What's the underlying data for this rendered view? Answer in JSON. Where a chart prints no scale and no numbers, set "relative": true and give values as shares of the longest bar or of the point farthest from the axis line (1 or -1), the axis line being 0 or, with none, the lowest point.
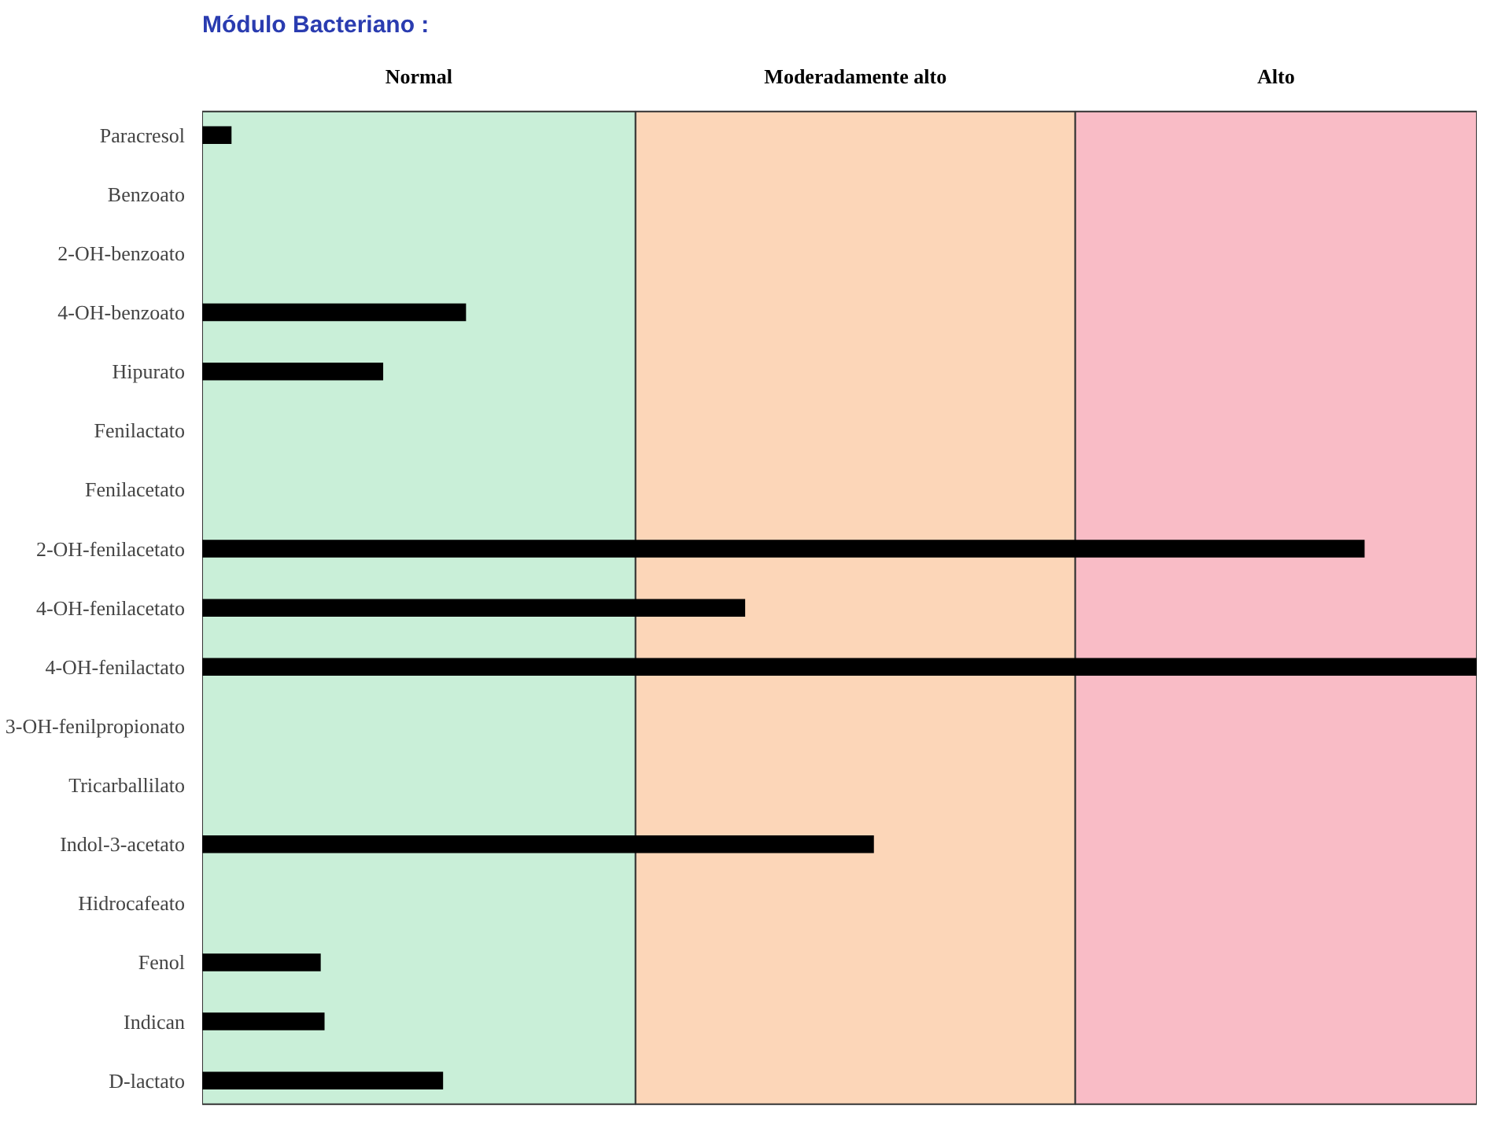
{
  "chart_data": {
    "type": "bar",
    "orientation": "horizontal",
    "relative": true,
    "title": "Módulo Bacteriano :",
    "categories": [
      "Paracresol",
      "Benzoato",
      "2-OH-benzoato",
      "4-OH-benzoato",
      "Hipurato",
      "Fenilactato",
      "Fenilacetato",
      "2-OH-fenilacetato",
      "4-OH-fenilacetato",
      "4-OH-fenilactato",
      "3-OH-fenilpropionato",
      "Tricarballilato",
      "Indol-3-acetato",
      "Hidrocafeato",
      "Fenol",
      "Indican",
      "D-lactato"
    ],
    "series": [
      {
        "color": "#000000",
        "values": [
          0.023,
          0,
          0,
          0.207,
          0.142,
          0,
          0,
          0.912,
          0.426,
          1.0,
          0,
          0,
          0.527,
          0,
          0.093,
          0.096,
          0.189
        ]
      }
    ],
    "bands": [
      {
        "axis": "x",
        "from": 0,
        "to": 0.34,
        "label": "Normal",
        "color": "#c9efd8"
      },
      {
        "axis": "x",
        "from": 0.34,
        "to": 0.685,
        "label": "Moderadamente alto",
        "color": "#fcd6b8"
      },
      {
        "axis": "x",
        "from": 0.685,
        "to": 1.0,
        "label": "Alto",
        "color": "#f9bcc6"
      }
    ],
    "grid": false
  }
}
